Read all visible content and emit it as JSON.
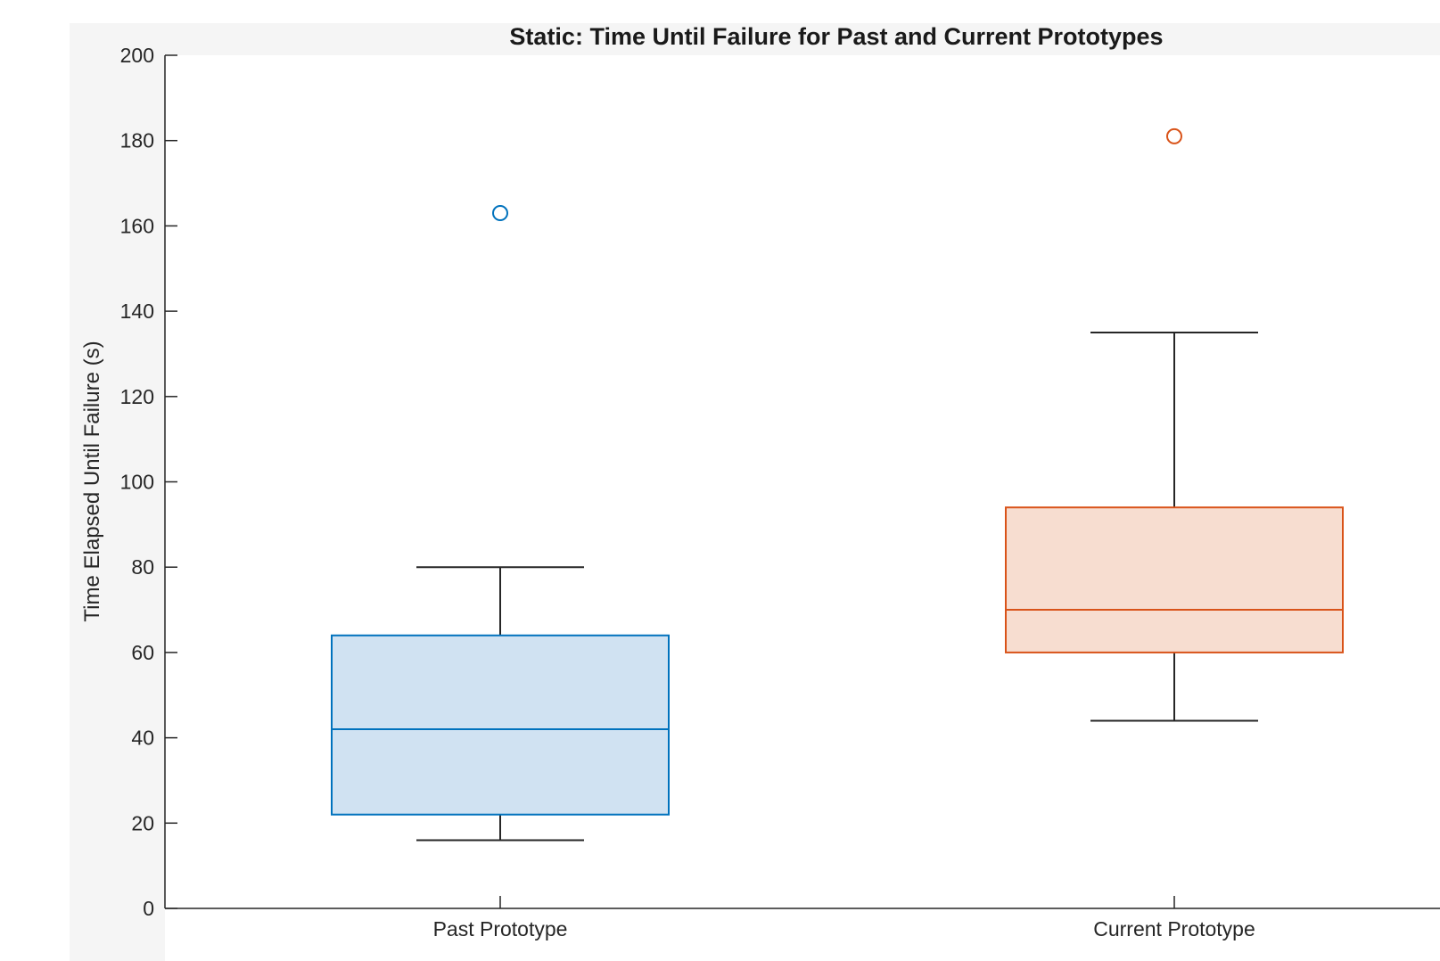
{
  "chart_data": {
    "type": "box",
    "title": "Static: Time Until Failure for Past and Current Prototypes",
    "xlabel": "",
    "ylabel": "Time Elapsed Until Failure (s)",
    "ylim": [
      0,
      200
    ],
    "yticks": [
      0,
      20,
      40,
      60,
      80,
      100,
      120,
      140,
      160,
      180,
      200
    ],
    "categories": [
      "Past Prototype",
      "Current Prototype"
    ],
    "grid": false,
    "boxes": [
      {
        "category": "Past Prototype",
        "whisker_low": 16,
        "q1": 22,
        "median": 42,
        "q3": 64,
        "whisker_high": 80,
        "outliers": [
          163
        ],
        "color": "#0072bd",
        "fill": "#d0e2f2"
      },
      {
        "category": "Current Prototype",
        "whisker_low": 44,
        "q1": 60,
        "median": 70,
        "q3": 94,
        "whisker_high": 135,
        "outliers": [
          181
        ],
        "color": "#d95319",
        "fill": "#f7ddd0"
      }
    ]
  }
}
